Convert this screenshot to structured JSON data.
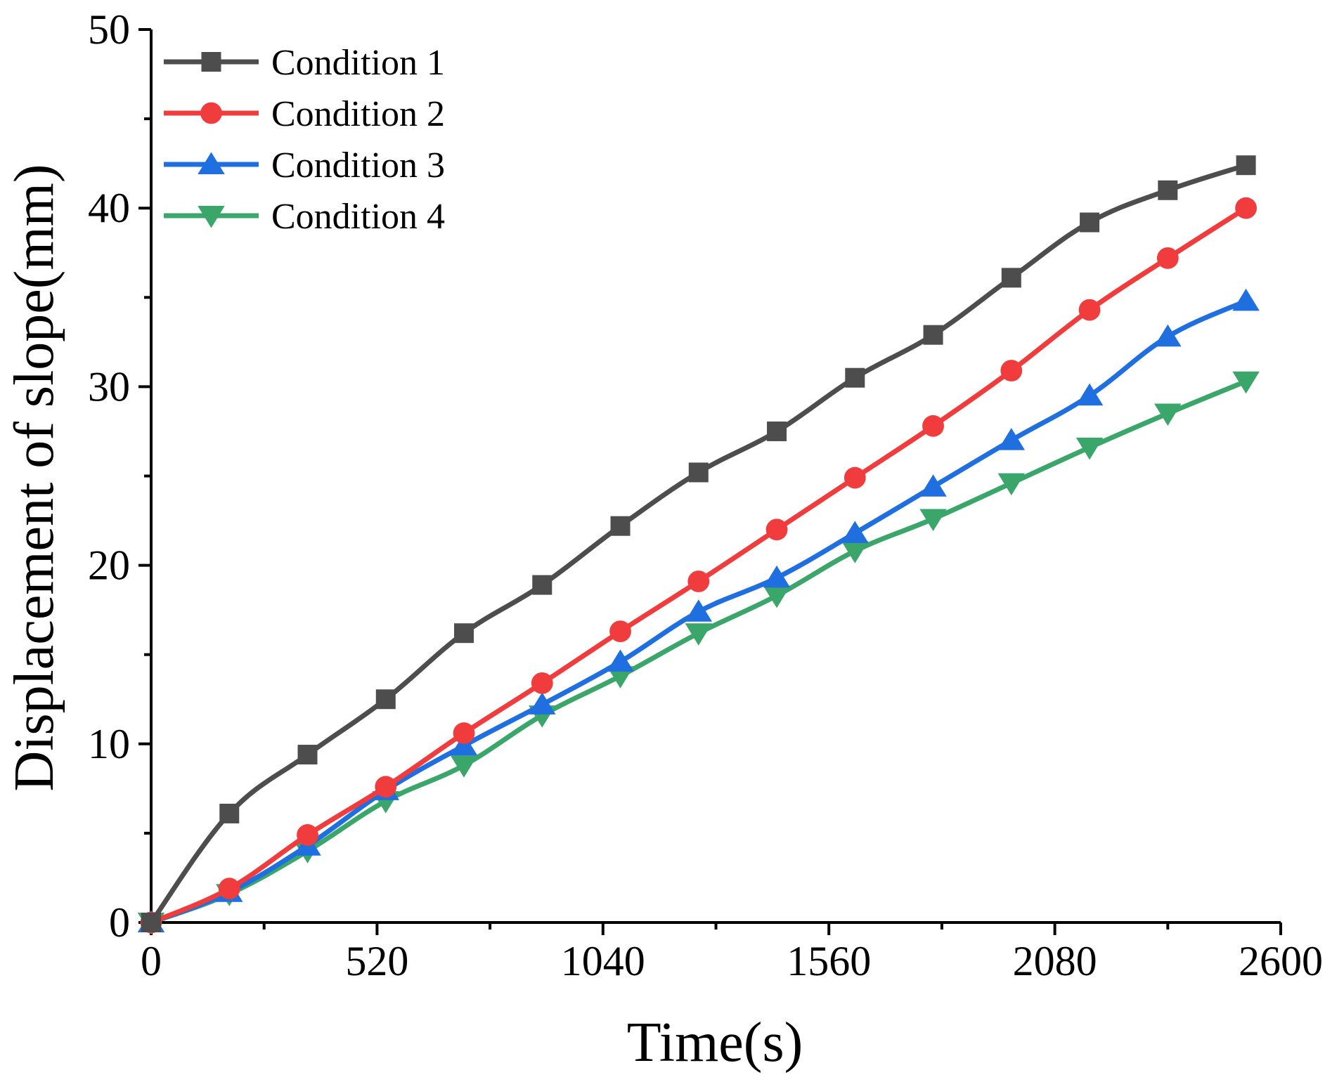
{
  "chart_data": {
    "type": "line",
    "title": "",
    "xlabel": "Time(s)",
    "ylabel": "Displacement of slope(mm)",
    "xlim": [
      0,
      2600
    ],
    "ylim": [
      0,
      50
    ],
    "xticks": [
      0,
      520,
      1040,
      1560,
      2080,
      2600
    ],
    "yticks": [
      0,
      10,
      20,
      30,
      40,
      50
    ],
    "grid": false,
    "legend_position": "top-left",
    "x": [
      0,
      180,
      360,
      540,
      720,
      900,
      1080,
      1260,
      1440,
      1620,
      1800,
      1980,
      2160,
      2340,
      2520
    ],
    "series": [
      {
        "name": "Condition 1",
        "color": "#4d4d4d",
        "marker": "square",
        "values": [
          0,
          6.1,
          9.4,
          12.5,
          16.2,
          18.9,
          22.2,
          25.2,
          27.5,
          30.5,
          32.9,
          36.1,
          39.2,
          41.0,
          42.4
        ]
      },
      {
        "name": "Condition 2",
        "color": "#f03c3c",
        "marker": "circle",
        "values": [
          0,
          1.9,
          4.9,
          7.6,
          10.6,
          13.4,
          16.3,
          19.1,
          22.0,
          24.9,
          27.8,
          30.9,
          34.3,
          37.2,
          40.0
        ]
      },
      {
        "name": "Condition 3",
        "color": "#1f6fe0",
        "marker": "triangle-up",
        "values": [
          0,
          1.7,
          4.3,
          7.4,
          9.9,
          12.2,
          14.6,
          17.4,
          19.3,
          21.8,
          24.4,
          27.0,
          29.5,
          32.8,
          34.8
        ]
      },
      {
        "name": "Condition 4",
        "color": "#3aa66a",
        "marker": "triangle-down",
        "values": [
          0,
          1.6,
          4.0,
          6.8,
          8.8,
          11.6,
          13.8,
          16.2,
          18.3,
          20.8,
          22.6,
          24.6,
          26.6,
          28.5,
          30.3
        ]
      }
    ]
  }
}
